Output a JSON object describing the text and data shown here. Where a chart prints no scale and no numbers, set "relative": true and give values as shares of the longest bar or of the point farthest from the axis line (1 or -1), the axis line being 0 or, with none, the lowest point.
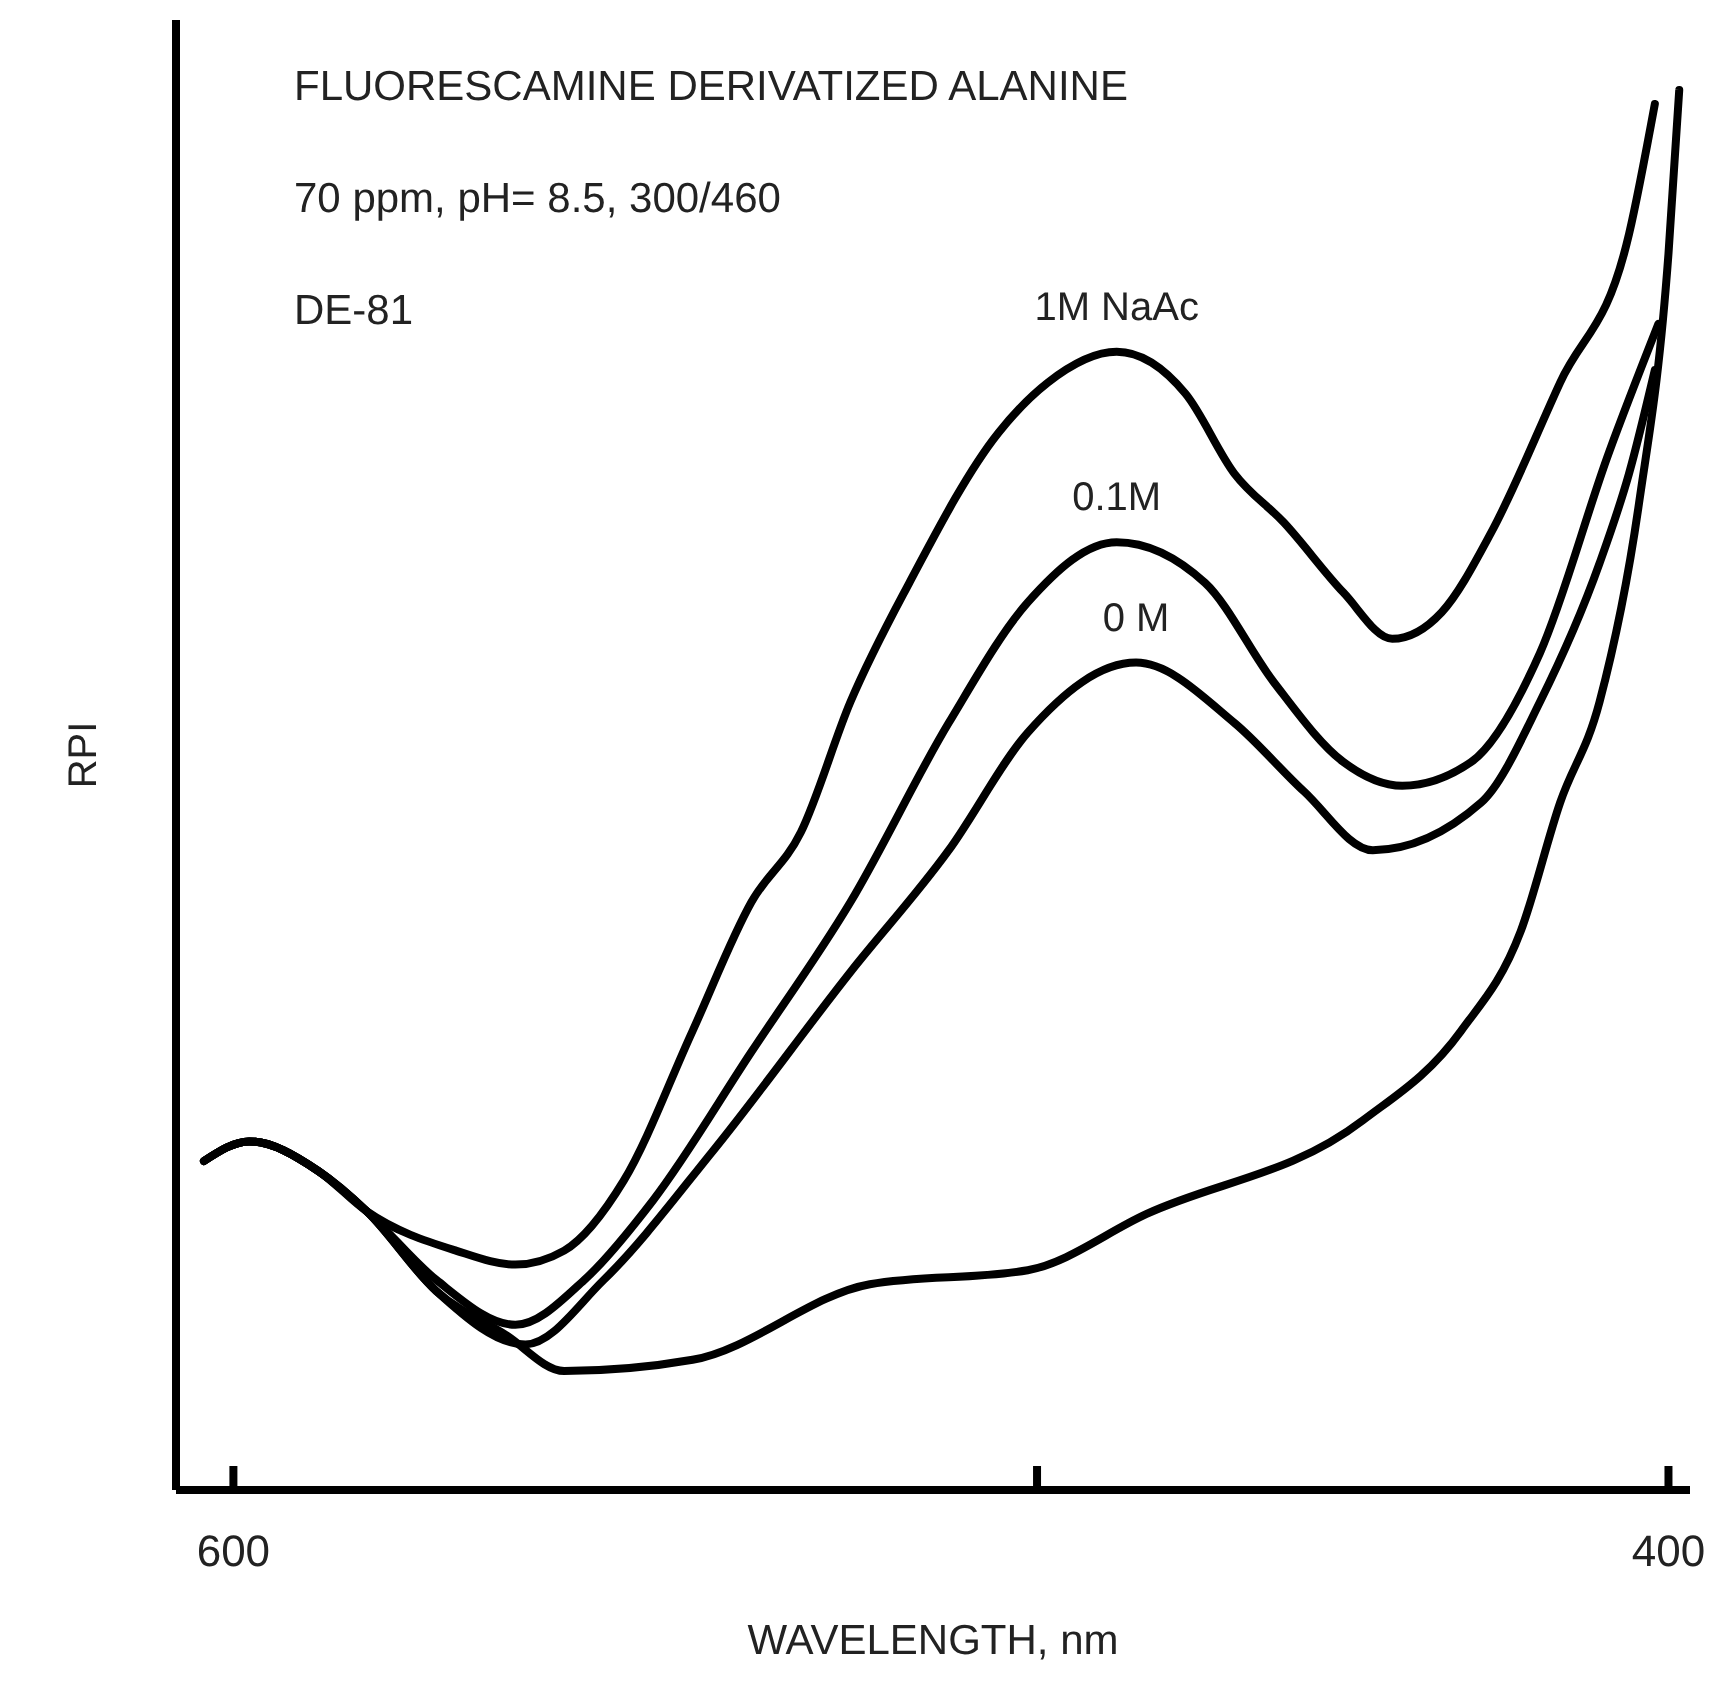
{
  "chart_data": {
    "type": "line",
    "relative": true,
    "title": "FLUORESCAMINE DERIVATIZED ALANINE",
    "subtitle": "70 ppm, pH= 8.5, 300/460",
    "annotations": [
      "DE-81"
    ],
    "xlabel": "WAVELENGTH, nm",
    "ylabel": "RPI",
    "xlim": [
      608,
      397
    ],
    "xticks": [
      600,
      {
        "value": 488,
        "label": null
      },
      400
    ],
    "grid": false,
    "marker": "none",
    "line_style": "solid",
    "series": [
      {
        "name": "1M NaAc",
        "color": "#000000",
        "x": [
          604.1,
          597.8,
          588.2,
          581.4,
          569.0,
          560.7,
          553.9,
          545.6,
          536.0,
          527.8,
          520.9,
          514.0,
          505.8,
          493.4,
          486.5,
          476.9,
          467.3,
          460.5,
          453.6,
          445.3,
          438.5,
          431.6,
          424.7,
          415.1,
          405.5,
          401.9
        ],
        "values": [
          0.235,
          0.249,
          0.228,
          0.199,
          0.171,
          0.161,
          0.171,
          0.221,
          0.328,
          0.42,
          0.47,
          0.563,
          0.648,
          0.755,
          0.791,
          0.813,
          0.783,
          0.726,
          0.691,
          0.641,
          0.608,
          0.627,
          0.684,
          0.791,
          0.897,
          0.99
        ]
      },
      {
        "name": "0.1M",
        "color": "#000000",
        "x": [
          604.1,
          597.8,
          588.2,
          581.4,
          571.7,
          560.7,
          551.1,
          541.5,
          527.8,
          514.0,
          500.3,
          489.3,
          476.9,
          464.6,
          455.0,
          445.3,
          437.1,
          427.5,
          417.9,
          408.3,
          401.4
        ],
        "values": [
          0.235,
          0.249,
          0.228,
          0.199,
          0.15,
          0.118,
          0.15,
          0.207,
          0.313,
          0.42,
          0.548,
          0.634,
          0.677,
          0.648,
          0.577,
          0.52,
          0.503,
          0.52,
          0.598,
          0.741,
          0.833
        ]
      },
      {
        "name": "0 M",
        "color": "#000000",
        "x": [
          604.1,
          597.8,
          588.2,
          581.4,
          571.7,
          559.3,
          548.4,
          533.2,
          514.0,
          500.3,
          489.3,
          474.2,
          460.5,
          450.8,
          441.2,
          426.1,
          417.9,
          409.6,
          405.5,
          401.9
        ],
        "values": [
          0.235,
          0.249,
          0.228,
          0.199,
          0.142,
          0.104,
          0.15,
          0.242,
          0.37,
          0.457,
          0.541,
          0.591,
          0.548,
          0.499,
          0.457,
          0.491,
          0.563,
          0.662,
          0.726,
          0.8
        ]
      },
      {
        "color": "#000000",
        "x": [
          604.1,
          597.8,
          588.2,
          581.4,
          571.7,
          562.1,
          553.9,
          536.0,
          511.3,
          489.3,
          472.8,
          442.6,
          428.9,
          420.6,
          415.1,
          409.6,
          404.1,
          400.0,
          398.5
        ],
        "values": [
          0.235,
          0.249,
          0.228,
          0.199,
          0.142,
          0.111,
          0.085,
          0.093,
          0.147,
          0.157,
          0.197,
          0.264,
          0.328,
          0.399,
          0.491,
          0.563,
          0.705,
          0.883,
          1
        ]
      }
    ]
  }
}
